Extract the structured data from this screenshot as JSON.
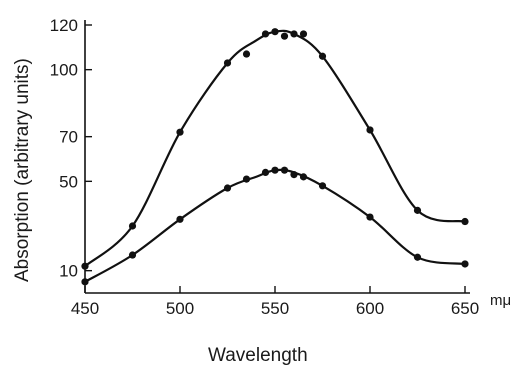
{
  "chart_data": {
    "type": "scatter",
    "title": "",
    "xlabel": "Wavelength",
    "ylabel": "Absorption (arbitrary units)",
    "x_unit": "mμ",
    "xlim": [
      450,
      650
    ],
    "ylim": [
      0,
      120
    ],
    "x_ticks": [
      450,
      500,
      550,
      600,
      650
    ],
    "y_ticks": [
      10,
      50,
      70,
      100,
      120
    ],
    "grid": false,
    "legend": "none",
    "series": [
      {
        "points": [
          [
            450,
            12
          ],
          [
            475,
            30
          ],
          [
            500,
            72
          ],
          [
            525,
            103
          ],
          [
            535,
            107
          ],
          [
            545,
            116
          ],
          [
            550,
            117
          ],
          [
            555,
            115
          ],
          [
            560,
            116
          ],
          [
            565,
            116
          ],
          [
            575,
            106
          ],
          [
            600,
            73
          ],
          [
            625,
            37
          ],
          [
            650,
            32
          ]
        ],
        "curve": [
          [
            450,
            12
          ],
          [
            475,
            30
          ],
          [
            500,
            72
          ],
          [
            525,
            103
          ],
          [
            540,
            113
          ],
          [
            550,
            117
          ],
          [
            560,
            116
          ],
          [
            575,
            106
          ],
          [
            600,
            73
          ],
          [
            625,
            37
          ],
          [
            650,
            32
          ]
        ]
      },
      {
        "points": [
          [
            450,
            5
          ],
          [
            475,
            17
          ],
          [
            500,
            33
          ],
          [
            525,
            47
          ],
          [
            535,
            51
          ],
          [
            545,
            54
          ],
          [
            550,
            55
          ],
          [
            555,
            55
          ],
          [
            560,
            53
          ],
          [
            565,
            52
          ],
          [
            575,
            48
          ],
          [
            600,
            34
          ],
          [
            625,
            16
          ],
          [
            650,
            13
          ]
        ],
        "curve": [
          [
            450,
            5
          ],
          [
            475,
            17
          ],
          [
            500,
            33
          ],
          [
            525,
            47
          ],
          [
            540,
            52
          ],
          [
            550,
            55
          ],
          [
            560,
            54
          ],
          [
            575,
            48
          ],
          [
            600,
            34
          ],
          [
            625,
            16
          ],
          [
            650,
            13
          ]
        ]
      }
    ]
  }
}
